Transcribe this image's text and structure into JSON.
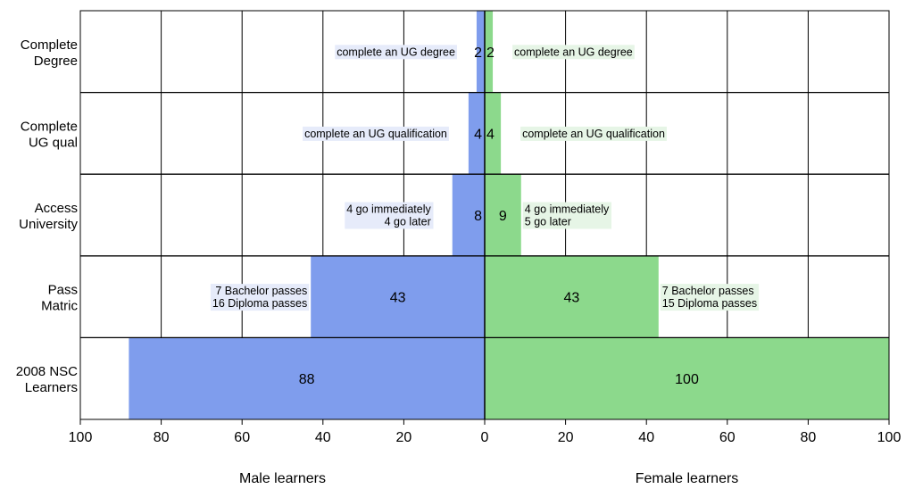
{
  "chart_data": {
    "type": "bar",
    "orientation": "horizontal-diverging",
    "categories": [
      [
        "Complete",
        "Degree"
      ],
      [
        "Complete",
        "UG qual"
      ],
      [
        "Access",
        "University"
      ],
      [
        "Pass",
        "Matric"
      ],
      [
        "2008 NSC",
        "Learners"
      ]
    ],
    "series": [
      {
        "name": "Male learners",
        "side": "left",
        "color": "#7f9ded",
        "note_bg": "#e6ebfa",
        "values": [
          2,
          4,
          8,
          43,
          88
        ],
        "value_labels": [
          "2",
          "4",
          "8",
          "43",
          "88"
        ],
        "notes": [
          [
            "complete an UG degree"
          ],
          [
            "complete an UG qualification"
          ],
          [
            "4 go immediately",
            "4 go later"
          ],
          [
            "7 Bachelor passes",
            "16 Diploma passes"
          ],
          []
        ]
      },
      {
        "name": "Female learners",
        "side": "right",
        "color": "#8cd98c",
        "note_bg": "#e6f5e6",
        "values": [
          2,
          4,
          9,
          43,
          100
        ],
        "value_labels": [
          "2",
          "4",
          "9",
          "43",
          "100"
        ],
        "notes": [
          [
            "complete an UG degree"
          ],
          [
            "complete an UG qualification"
          ],
          [
            "4 go immediately",
            "5 go later"
          ],
          [
            "7 Bachelor passes",
            "15 Diploma passes"
          ],
          []
        ]
      }
    ],
    "xlim": [
      0,
      100
    ],
    "xticks": [
      100,
      80,
      60,
      40,
      20,
      0,
      20,
      40,
      60,
      80,
      100
    ],
    "xlabel_left": "Male learners",
    "xlabel_right": "Female learners",
    "grid": true,
    "title": ""
  }
}
